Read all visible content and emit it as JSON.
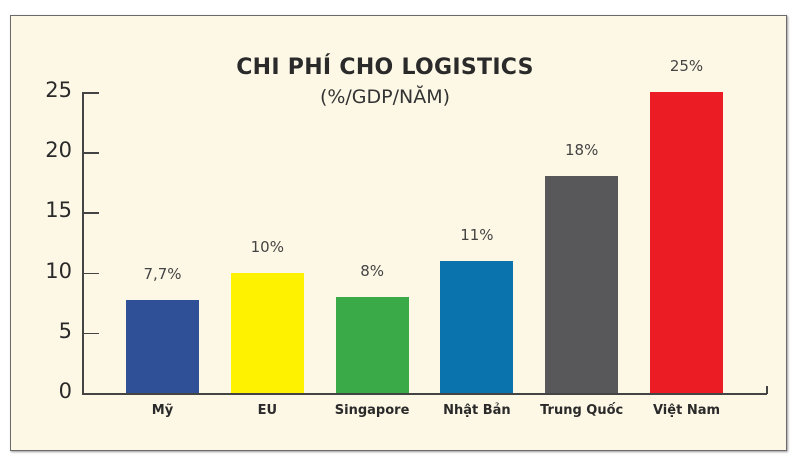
{
  "chart_data": {
    "type": "bar",
    "title": "CHI PHÍ CHO LOGISTICS",
    "subtitle": "(%/GDP/NĂM)",
    "xlabel": "",
    "ylabel": "",
    "categories": [
      "Mỹ",
      "EU",
      "Singapore",
      "Nhật Bản",
      "Trung Quốc",
      "Việt Nam"
    ],
    "values": [
      7.7,
      10,
      8,
      11,
      18,
      25
    ],
    "data_labels": [
      "7,7%",
      "10%",
      "8%",
      "11%",
      "18%",
      "25%"
    ],
    "colors": [
      "#2f4f97",
      "#fff200",
      "#3aaa49",
      "#0a72ad",
      "#58585a",
      "#ec1c24"
    ],
    "yticks": [
      0,
      5,
      10,
      15,
      20,
      25
    ],
    "ylim": [
      0,
      25
    ],
    "grid": false,
    "legend": null
  }
}
